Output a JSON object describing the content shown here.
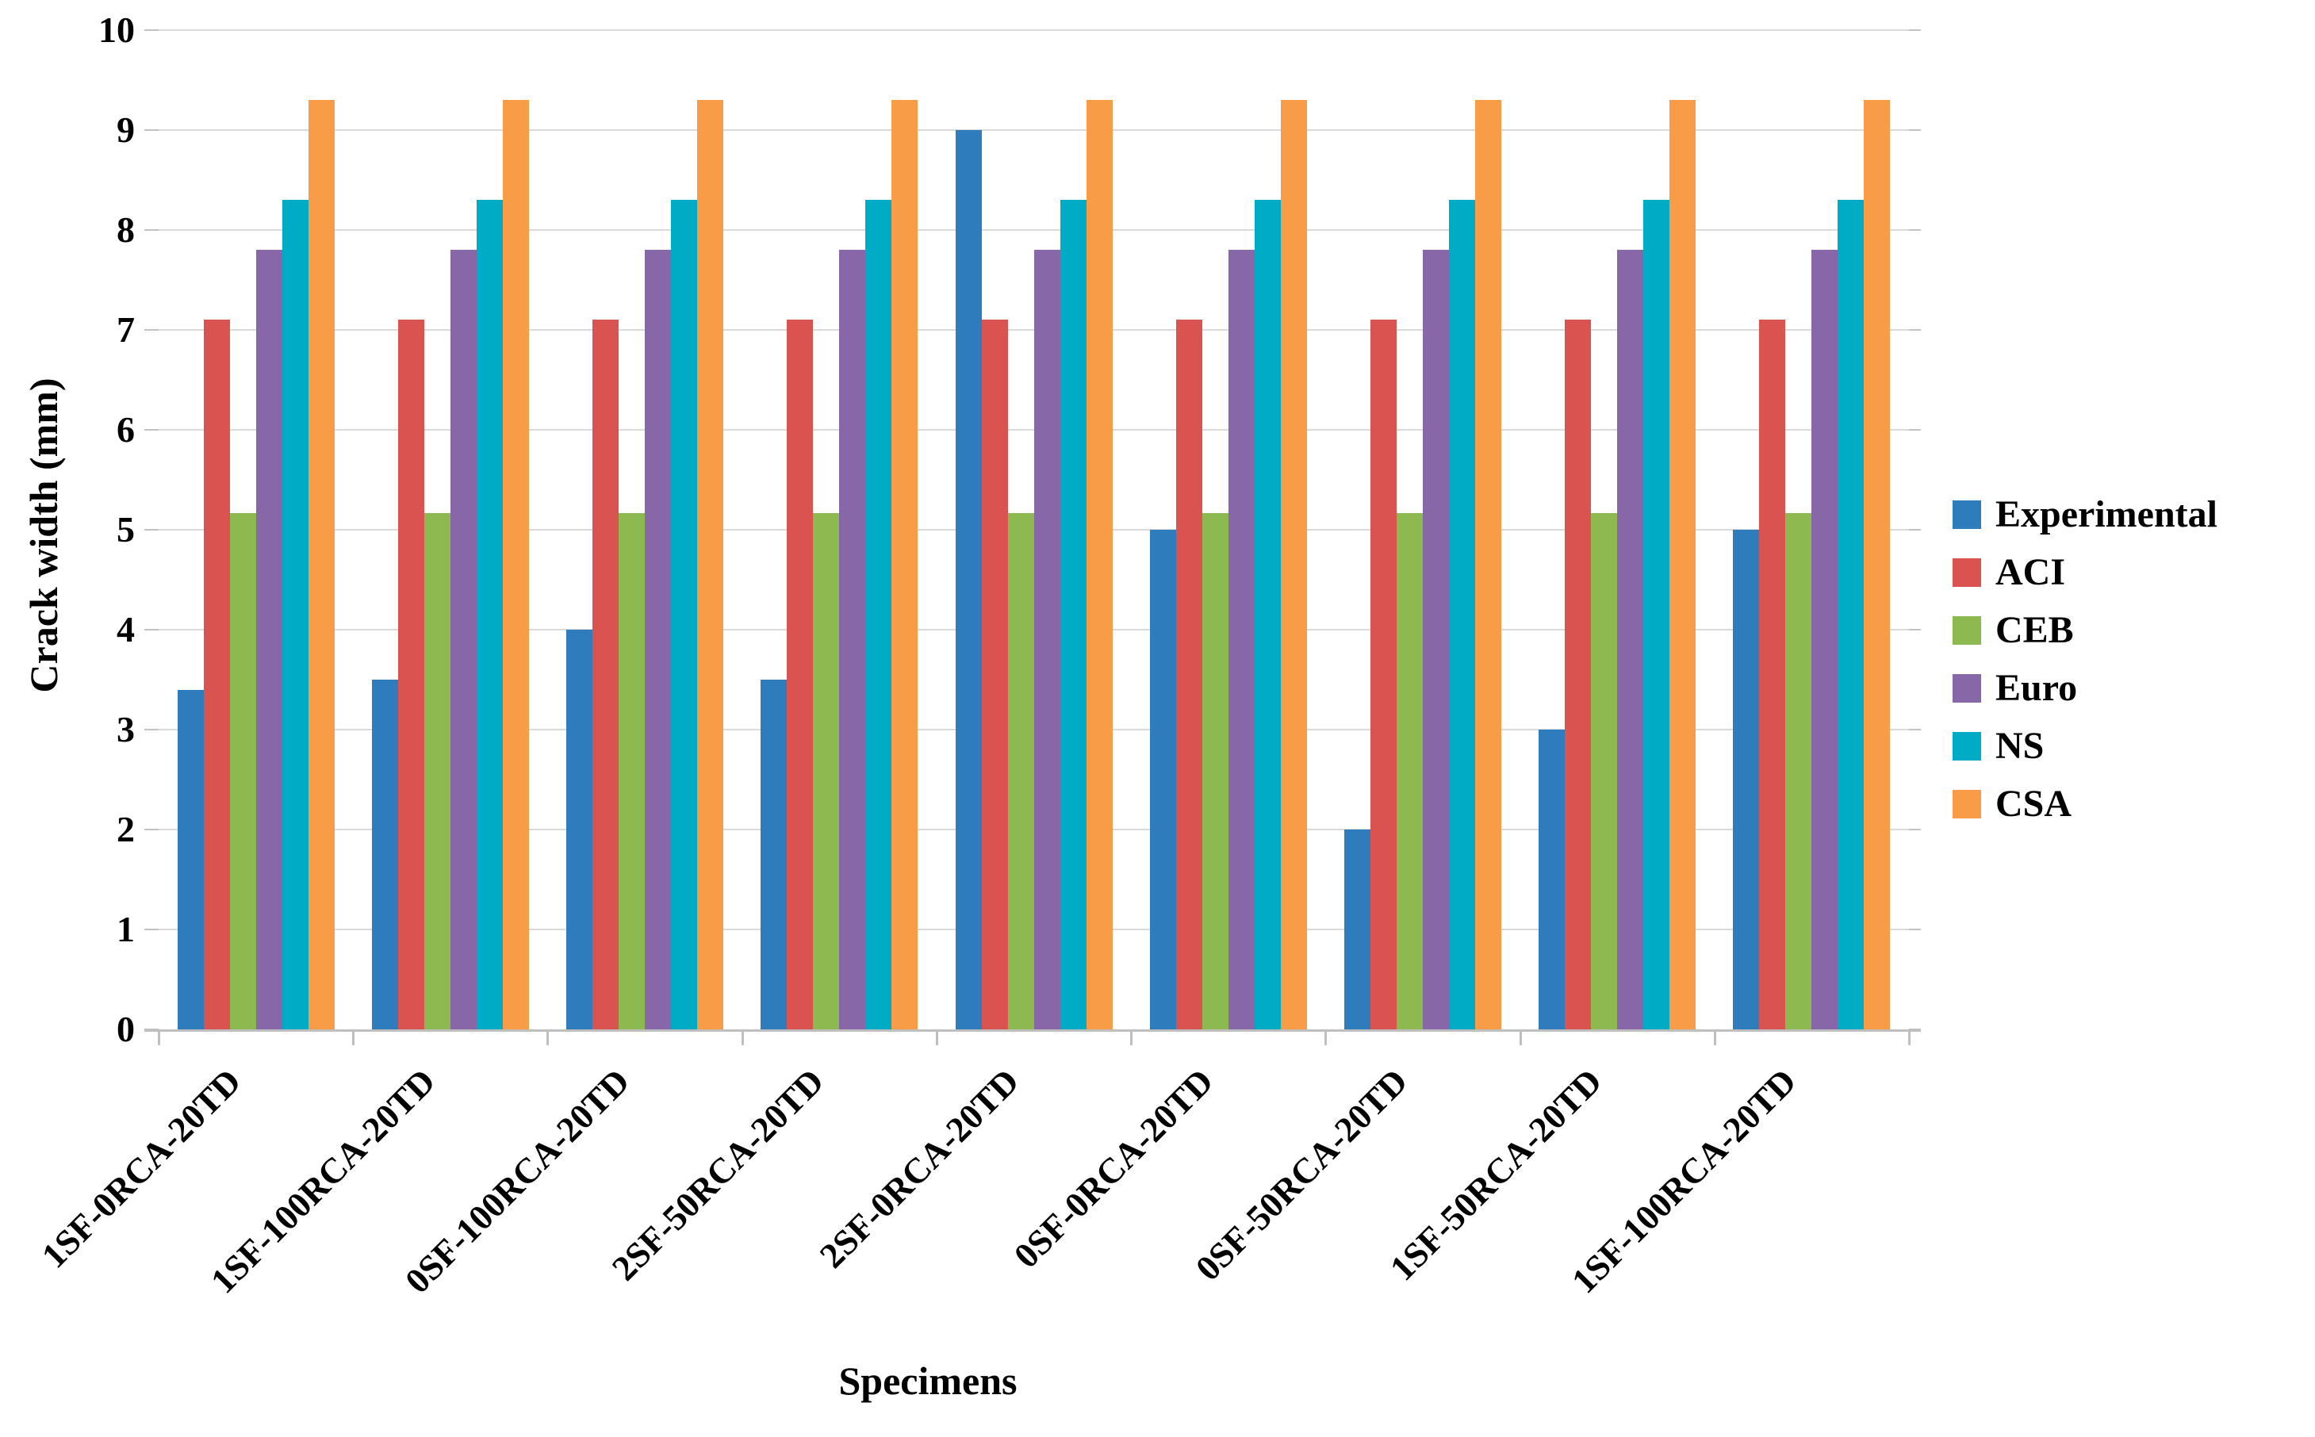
{
  "axes": {
    "y_title": "Crack width (mm)",
    "x_title": "Specimens",
    "y_ticks": [
      "0",
      "1",
      "2",
      "3",
      "4",
      "5",
      "6",
      "7",
      "8",
      "9",
      "10"
    ]
  },
  "legend": {
    "position": "right",
    "items": [
      {
        "label": "Experimental",
        "color": "#2e7cbb"
      },
      {
        "label": "ACI",
        "color": "#d95350"
      },
      {
        "label": "CEB",
        "color": "#8cba50"
      },
      {
        "label": "Euro",
        "color": "#8767a8"
      },
      {
        "label": "NS",
        "color": "#00acc5"
      },
      {
        "label": "CSA",
        "color": "#f99c47"
      }
    ]
  },
  "chart_data": {
    "type": "bar",
    "title": "",
    "xlabel": "Specimens",
    "ylabel": "Crack width (mm)",
    "ylim": [
      0,
      10
    ],
    "grid": true,
    "legend_position": "right",
    "categories": [
      "1SF-0RCA-20TD",
      "1SF-100RCA-20TD",
      "0SF-100RCA-20TD",
      "2SF-50RCA-20TD",
      "2SF-0RCA-20TD",
      "0SF-0RCA-20TD",
      "0SF-50RCA-20TD",
      "1SF-50RCA-20TD",
      "1SF-100RCA-20TD"
    ],
    "series": [
      {
        "name": "Experimental",
        "color": "#2e7cbb",
        "values": [
          3.4,
          3.5,
          4.0,
          3.5,
          9.0,
          5.0,
          2.0,
          3.0,
          5.0
        ]
      },
      {
        "name": "ACI",
        "color": "#d95350",
        "values": [
          7.1,
          7.1,
          7.1,
          7.1,
          7.1,
          7.1,
          7.1,
          7.1,
          7.1
        ]
      },
      {
        "name": "CEB",
        "color": "#8cba50",
        "values": [
          5.17,
          5.17,
          5.17,
          5.17,
          5.17,
          5.17,
          5.17,
          5.17,
          5.17
        ]
      },
      {
        "name": "Euro",
        "color": "#8767a8",
        "values": [
          7.8,
          7.8,
          7.8,
          7.8,
          7.8,
          7.8,
          7.8,
          7.8,
          7.8
        ]
      },
      {
        "name": "NS",
        "color": "#00acc5",
        "values": [
          8.3,
          8.3,
          8.3,
          8.3,
          8.3,
          8.3,
          8.3,
          8.3,
          8.3
        ]
      },
      {
        "name": "CSA",
        "color": "#f99c47",
        "values": [
          9.3,
          9.3,
          9.3,
          9.3,
          9.3,
          9.3,
          9.3,
          9.3,
          9.3
        ]
      }
    ]
  }
}
